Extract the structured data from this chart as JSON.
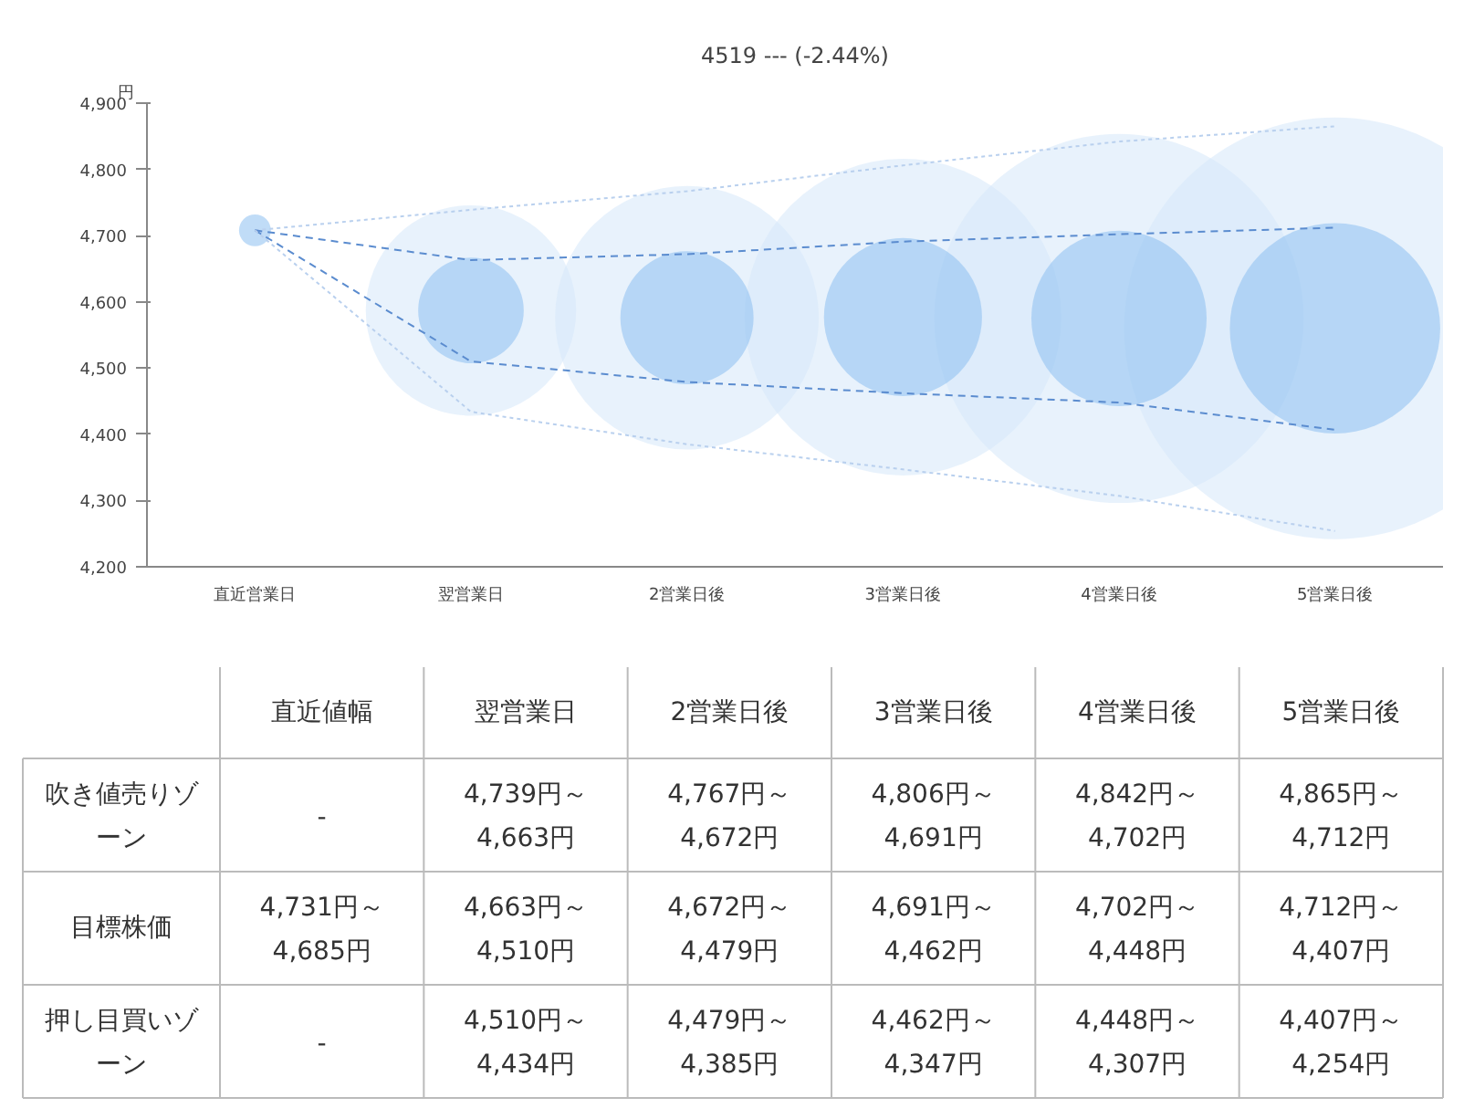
{
  "chart_data": [
    {
      "type": "line",
      "title": "4519 --- (-2.44%)",
      "ylabel": "円",
      "categories": [
        "直近営業日",
        "翌営業日",
        "2営業日後",
        "3営業日後",
        "4営業日後",
        "5営業日後"
      ],
      "ylim": [
        4200,
        4900
      ],
      "yticks": [
        {
          "value": 4200,
          "label": "4,200"
        },
        {
          "value": 4300,
          "label": "4,300"
        },
        {
          "value": 4400,
          "label": "4,400"
        },
        {
          "value": 4500,
          "label": "4,500"
        },
        {
          "value": 4600,
          "label": "4,600"
        },
        {
          "value": 4700,
          "label": "4,700"
        },
        {
          "value": 4800,
          "label": "4,800"
        },
        {
          "value": 4900,
          "label": "4,900"
        }
      ],
      "series": [
        {
          "type": "bubble",
          "color": "#d6e7fa",
          "values": [
            null,
            4587,
            4576,
            4577,
            4575,
            4560
          ],
          "sizes": [
            null,
            0.249,
            0.391,
            0.564,
            0.767,
            1
          ]
        },
        {
          "type": "bubble",
          "color": "#8cbff0",
          "values": [
            4708,
            4587,
            4576,
            4577,
            4575,
            4560
          ],
          "sizes": [
            0.0057,
            0.0627,
            0.0998,
            0.1405,
            0.1728,
            0.249
          ]
        },
        {
          "color": "#b9d0ee",
          "line_style": "dotted",
          "values": [
            4708,
            4739,
            4767,
            4806,
            4842,
            4865
          ]
        },
        {
          "color": "#5b8ccf",
          "line_style": "dashed",
          "values": [
            4708,
            4663,
            4672,
            4691,
            4702,
            4712
          ]
        },
        {
          "color": "#5b8ccf",
          "line_style": "dashed",
          "values": [
            4708,
            4510,
            4479,
            4462,
            4448,
            4407
          ]
        },
        {
          "color": "#b9d0ee",
          "line_style": "dotted",
          "values": [
            4708,
            4434,
            4385,
            4347,
            4307,
            4254
          ]
        }
      ]
    },
    {
      "type": "heatmap",
      "categories": [
        "直近値幅",
        "翌営業日",
        "2営業日後",
        "3営業日後",
        "4営業日後",
        "5営業日後"
      ],
      "y_categories": [
        "吹き値売りゾーン",
        "目標株価",
        "押し目買いゾーン"
      ],
      "cells": [
        [
          null,
          null,
          null,
          null,
          null,
          null
        ],
        [
          null,
          null,
          null,
          null,
          null,
          null
        ],
        [
          null,
          null,
          null,
          null,
          null,
          null
        ]
      ],
      "cell_labels": [
        [
          "-",
          "4,739円～4,663円",
          "4,767円～4,672円",
          "4,806円～4,691円",
          "4,842円～4,702円",
          "4,865円～4,712円"
        ],
        [
          "4,731円～4,685円",
          "4,663円～4,510円",
          "4,672円～4,479円",
          "4,691円～4,462円",
          "4,702円～4,448円",
          "4,712円～4,407円"
        ],
        [
          "-",
          "4,510円～4,434円",
          "4,479円～4,385円",
          "4,462円～4,347円",
          "4,448円～4,307円",
          "4,407円～4,254円"
        ]
      ]
    }
  ]
}
